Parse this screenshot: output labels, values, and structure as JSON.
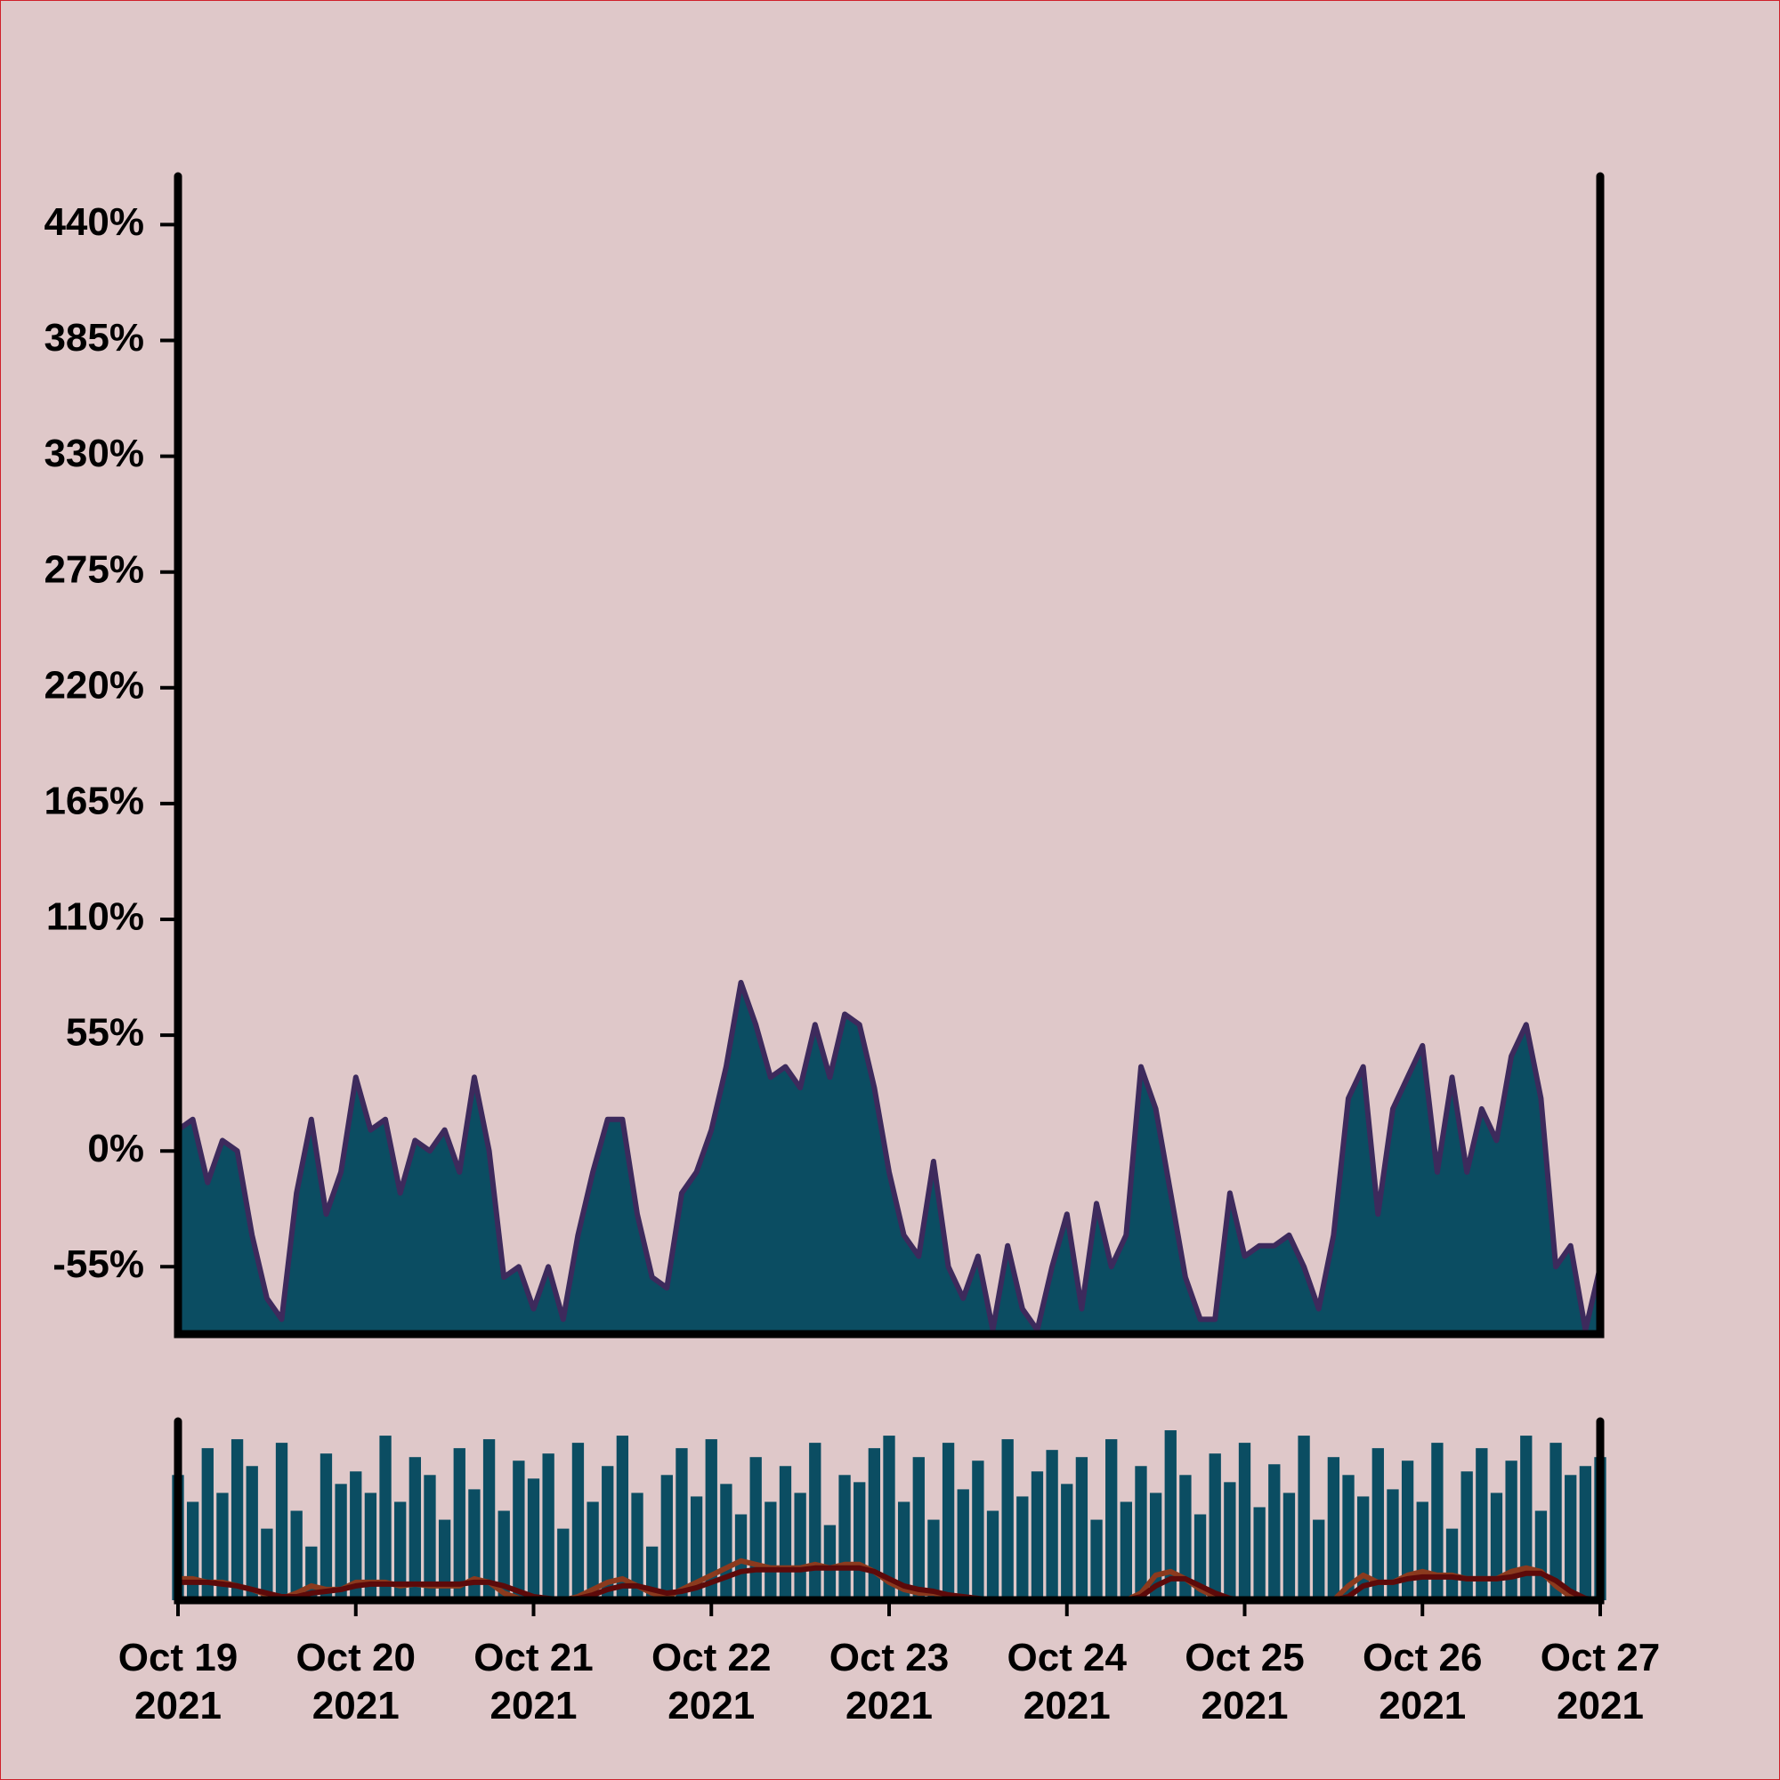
{
  "chart_data": [
    {
      "type": "area",
      "color": "#0b4d62",
      "line_color": "#3d2a5c",
      "x": [
        "2021-10-19T00:00",
        "2021-10-19T02:00",
        "2021-10-19T04:00",
        "2021-10-19T06:00",
        "2021-10-19T08:00",
        "2021-10-19T10:00",
        "2021-10-19T12:00",
        "2021-10-19T14:00",
        "2021-10-19T16:00",
        "2021-10-19T18:00",
        "2021-10-19T20:00",
        "2021-10-19T22:00",
        "2021-10-20T00:00",
        "2021-10-20T02:00",
        "2021-10-20T04:00",
        "2021-10-20T06:00",
        "2021-10-20T08:00",
        "2021-10-20T10:00",
        "2021-10-20T12:00",
        "2021-10-20T14:00",
        "2021-10-20T16:00",
        "2021-10-20T18:00",
        "2021-10-20T20:00",
        "2021-10-20T22:00",
        "2021-10-21T00:00",
        "2021-10-21T02:00",
        "2021-10-21T04:00",
        "2021-10-21T06:00",
        "2021-10-21T08:00",
        "2021-10-21T10:00",
        "2021-10-21T12:00",
        "2021-10-21T14:00",
        "2021-10-21T16:00",
        "2021-10-21T18:00",
        "2021-10-21T20:00",
        "2021-10-21T22:00",
        "2021-10-22T00:00",
        "2021-10-22T02:00",
        "2021-10-22T04:00",
        "2021-10-22T06:00",
        "2021-10-22T08:00",
        "2021-10-22T10:00",
        "2021-10-22T12:00",
        "2021-10-22T14:00",
        "2021-10-22T16:00",
        "2021-10-22T18:00",
        "2021-10-22T20:00",
        "2021-10-22T22:00",
        "2021-10-23T00:00",
        "2021-10-23T02:00",
        "2021-10-23T04:00",
        "2021-10-23T06:00",
        "2021-10-23T08:00",
        "2021-10-23T10:00",
        "2021-10-23T12:00",
        "2021-10-23T14:00",
        "2021-10-23T16:00",
        "2021-10-23T18:00",
        "2021-10-23T20:00",
        "2021-10-23T22:00",
        "2021-10-24T00:00",
        "2021-10-24T02:00",
        "2021-10-24T04:00",
        "2021-10-24T06:00",
        "2021-10-24T08:00",
        "2021-10-24T10:00",
        "2021-10-24T12:00",
        "2021-10-24T14:00",
        "2021-10-24T16:00",
        "2021-10-24T18:00",
        "2021-10-24T20:00",
        "2021-10-24T22:00",
        "2021-10-25T00:00",
        "2021-10-25T02:00",
        "2021-10-25T04:00",
        "2021-10-25T06:00",
        "2021-10-25T08:00",
        "2021-10-25T10:00",
        "2021-10-25T12:00",
        "2021-10-25T14:00",
        "2021-10-25T16:00",
        "2021-10-25T18:00",
        "2021-10-25T20:00",
        "2021-10-25T22:00",
        "2021-10-26T00:00",
        "2021-10-26T02:00",
        "2021-10-26T04:00",
        "2021-10-26T06:00",
        "2021-10-26T08:00",
        "2021-10-26T10:00",
        "2021-10-26T12:00",
        "2021-10-26T14:00",
        "2021-10-26T16:00",
        "2021-10-26T18:00",
        "2021-10-26T20:00",
        "2021-10-26T22:00",
        "2021-10-27T00:00"
      ],
      "values": [
        10,
        15,
        -15,
        5,
        0,
        -40,
        -70,
        -80,
        -20,
        15,
        -30,
        -10,
        35,
        10,
        15,
        -20,
        5,
        0,
        10,
        -10,
        35,
        0,
        -60,
        -55,
        -75,
        -55,
        -80,
        -40,
        -10,
        15,
        15,
        -30,
        -60,
        -65,
        -20,
        -10,
        10,
        40,
        80,
        60,
        35,
        40,
        30,
        60,
        35,
        65,
        60,
        30,
        -10,
        -40,
        -50,
        -5,
        -55,
        -70,
        -50,
        -85,
        -45,
        -75,
        -85,
        -55,
        -30,
        -75,
        -25,
        -55,
        -40,
        40,
        20,
        -20,
        -60,
        -80,
        -80,
        -20,
        -50,
        -45,
        -45,
        -40,
        -55,
        -75,
        -40,
        25,
        40,
        -30,
        20,
        35,
        50,
        -10,
        35,
        -10,
        20,
        5,
        45,
        60,
        25,
        -55,
        -45,
        -85,
        -55
      ],
      "xlim": [
        "2021-10-19T00:00",
        "2021-10-27T00:00"
      ],
      "ylim": [
        -87,
        463
      ],
      "yticks": [
        {
          "value": -55,
          "label": "-55%"
        },
        {
          "value": 0,
          "label": "0%"
        },
        {
          "value": 55,
          "label": "55%"
        },
        {
          "value": 110,
          "label": "110%"
        },
        {
          "value": 165,
          "label": "165%"
        },
        {
          "value": 220,
          "label": "220%"
        },
        {
          "value": 275,
          "label": "275%"
        },
        {
          "value": 330,
          "label": "330%"
        },
        {
          "value": 385,
          "label": "385%"
        },
        {
          "value": 440,
          "label": "440%"
        }
      ]
    },
    {
      "type": "bar",
      "color": "#0b4d62",
      "values": [
        70,
        55,
        85,
        60,
        90,
        75,
        40,
        88,
        50,
        30,
        82,
        65,
        72,
        60,
        92,
        55,
        80,
        70,
        45,
        85,
        62,
        90,
        50,
        78,
        68,
        82,
        40,
        88,
        55,
        75,
        92,
        60,
        30,
        70,
        85,
        58,
        90,
        65,
        48,
        80,
        55,
        75,
        60,
        88,
        42,
        70,
        66,
        85,
        92,
        55,
        80,
        45,
        88,
        62,
        78,
        50,
        90,
        58,
        72,
        84,
        65,
        80,
        45,
        90,
        55,
        75,
        60,
        95,
        70,
        48,
        82,
        66,
        88,
        52,
        76,
        60,
        92,
        45,
        80,
        70,
        58,
        85,
        62,
        78,
        55,
        88,
        40,
        72,
        85,
        60,
        78,
        92,
        50,
        88,
        70,
        75,
        80
      ],
      "lines": [
        {
          "color": "#8b3a1e",
          "values": [
            12,
            12,
            10,
            10,
            8,
            6,
            3,
            1,
            4,
            8,
            6,
            6,
            10,
            10,
            10,
            8,
            9,
            8,
            8,
            8,
            12,
            10,
            4,
            1,
            0,
            0,
            0,
            2,
            6,
            10,
            12,
            8,
            4,
            2,
            6,
            10,
            14,
            18,
            22,
            20,
            18,
            18,
            18,
            20,
            18,
            20,
            20,
            16,
            10,
            6,
            4,
            4,
            2,
            0,
            0,
            0,
            0,
            0,
            0,
            0,
            0,
            0,
            0,
            0,
            0,
            4,
            14,
            16,
            12,
            6,
            2,
            0,
            0,
            0,
            0,
            0,
            0,
            0,
            0,
            8,
            14,
            10,
            10,
            14,
            16,
            14,
            14,
            12,
            12,
            12,
            16,
            18,
            16,
            8,
            2,
            0,
            0
          ]
        },
        {
          "color": "#5c0a0a",
          "values": [
            10,
            10,
            10,
            9,
            8,
            6,
            4,
            2,
            2,
            4,
            5,
            6,
            8,
            9,
            9,
            9,
            9,
            9,
            9,
            9,
            10,
            10,
            8,
            5,
            2,
            1,
            0,
            1,
            3,
            6,
            8,
            8,
            6,
            4,
            5,
            7,
            10,
            13,
            16,
            17,
            17,
            17,
            17,
            18,
            18,
            18,
            18,
            16,
            12,
            8,
            6,
            5,
            3,
            2,
            1,
            0,
            0,
            0,
            0,
            0,
            0,
            0,
            0,
            0,
            0,
            2,
            8,
            12,
            12,
            8,
            4,
            1,
            0,
            0,
            0,
            0,
            0,
            0,
            0,
            2,
            8,
            10,
            10,
            12,
            13,
            13,
            13,
            12,
            12,
            12,
            13,
            15,
            15,
            11,
            5,
            1,
            0
          ]
        }
      ],
      "ylim": [
        0,
        100
      ],
      "xlim": [
        "2021-10-19T00:00",
        "2021-10-27T00:00"
      ],
      "xticks": [
        {
          "value": "2021-10-19T00:00",
          "label": "Oct 19 2021"
        },
        {
          "value": "2021-10-20T00:00",
          "label": "Oct 20 2021"
        },
        {
          "value": "2021-10-21T00:00",
          "label": "Oct 21 2021"
        },
        {
          "value": "2021-10-22T00:00",
          "label": "Oct 22 2021"
        },
        {
          "value": "2021-10-23T00:00",
          "label": "Oct 23 2021"
        },
        {
          "value": "2021-10-24T00:00",
          "label": "Oct 24 2021"
        },
        {
          "value": "2021-10-25T00:00",
          "label": "Oct 25 2021"
        },
        {
          "value": "2021-10-26T00:00",
          "label": "Oct 26 2021"
        },
        {
          "value": "2021-10-27T00:00",
          "label": "Oct 27 2021"
        }
      ]
    }
  ]
}
